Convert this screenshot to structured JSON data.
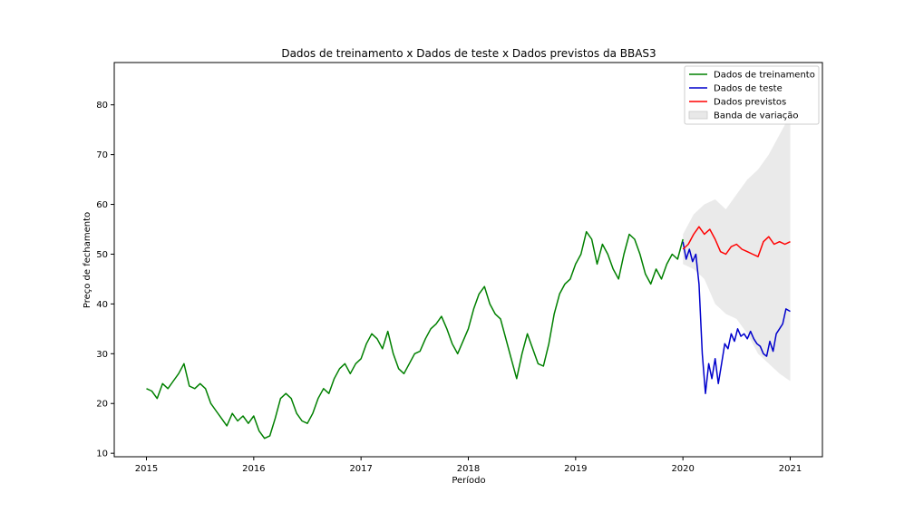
{
  "chart_data": {
    "type": "line",
    "title": "Dados de treinamento x Dados de teste x Dados previstos da BBAS3",
    "xlabel": "Período",
    "ylabel": "Preço de fechamento",
    "xlim": [
      2014.7,
      2021.3
    ],
    "ylim": [
      9.3,
      88.5
    ],
    "x_ticks": [
      2015,
      2016,
      2017,
      2018,
      2019,
      2020,
      2021
    ],
    "x_tick_labels": [
      "2015",
      "2016",
      "2017",
      "2018",
      "2019",
      "2020",
      "2021"
    ],
    "y_ticks": [
      10,
      20,
      30,
      40,
      50,
      60,
      70,
      80
    ],
    "y_tick_labels": [
      "10",
      "20",
      "30",
      "40",
      "50",
      "60",
      "70",
      "80"
    ],
    "grid": false,
    "legend_position": "top-right",
    "series": [
      {
        "name": "Dados de treinamento",
        "color": "#008000",
        "x": [
          2015.0,
          2015.05,
          2015.1,
          2015.15,
          2015.2,
          2015.25,
          2015.3,
          2015.35,
          2015.4,
          2015.45,
          2015.5,
          2015.55,
          2015.6,
          2015.65,
          2015.7,
          2015.75,
          2015.8,
          2015.85,
          2015.9,
          2015.95,
          2016.0,
          2016.05,
          2016.1,
          2016.15,
          2016.2,
          2016.25,
          2016.3,
          2016.35,
          2016.4,
          2016.45,
          2016.5,
          2016.55,
          2016.6,
          2016.65,
          2016.7,
          2016.75,
          2016.8,
          2016.85,
          2016.9,
          2016.95,
          2017.0,
          2017.05,
          2017.1,
          2017.15,
          2017.2,
          2017.25,
          2017.3,
          2017.35,
          2017.4,
          2017.45,
          2017.5,
          2017.55,
          2017.6,
          2017.65,
          2017.7,
          2017.75,
          2017.8,
          2017.85,
          2017.9,
          2017.95,
          2018.0,
          2018.05,
          2018.1,
          2018.15,
          2018.2,
          2018.25,
          2018.3,
          2018.35,
          2018.4,
          2018.45,
          2018.5,
          2018.55,
          2018.6,
          2018.65,
          2018.7,
          2018.75,
          2018.8,
          2018.85,
          2018.9,
          2018.95,
          2019.0,
          2019.05,
          2019.1,
          2019.15,
          2019.2,
          2019.25,
          2019.3,
          2019.35,
          2019.4,
          2019.45,
          2019.5,
          2019.55,
          2019.6,
          2019.65,
          2019.7,
          2019.75,
          2019.8,
          2019.85,
          2019.9,
          2019.95,
          2020.0
        ],
        "values": [
          23.0,
          22.5,
          21.0,
          24.0,
          23.0,
          24.5,
          26.0,
          28.0,
          23.5,
          23.0,
          24.0,
          23.0,
          20.0,
          18.5,
          17.0,
          15.5,
          18.0,
          16.5,
          17.5,
          16.0,
          17.5,
          14.5,
          13.0,
          13.5,
          17.0,
          21.0,
          22.0,
          21.0,
          18.0,
          16.5,
          16.0,
          18.0,
          21.0,
          23.0,
          22.0,
          25.0,
          27.0,
          28.0,
          26.0,
          28.0,
          29.0,
          32.0,
          34.0,
          33.0,
          31.0,
          34.5,
          30.0,
          27.0,
          26.0,
          28.0,
          30.0,
          30.5,
          33.0,
          35.0,
          36.0,
          37.5,
          35.0,
          32.0,
          30.0,
          32.5,
          35.0,
          39.0,
          42.0,
          43.5,
          40.0,
          38.0,
          37.0,
          33.0,
          29.0,
          25.0,
          30.0,
          34.0,
          31.0,
          28.0,
          27.5,
          32.0,
          38.0,
          42.0,
          44.0,
          45.0,
          48.0,
          50.0,
          54.5,
          53.0,
          48.0,
          52.0,
          50.0,
          47.0,
          45.0,
          50.0,
          54.0,
          53.0,
          50.0,
          46.0,
          44.0,
          47.0,
          45.0,
          48.0,
          50.0,
          49.0,
          53.0
        ]
      },
      {
        "name": "Dados de teste",
        "color": "#0000cc",
        "x": [
          2020.0,
          2020.03,
          2020.06,
          2020.09,
          2020.12,
          2020.15,
          2020.18,
          2020.21,
          2020.24,
          2020.27,
          2020.3,
          2020.33,
          2020.36,
          2020.39,
          2020.42,
          2020.45,
          2020.48,
          2020.51,
          2020.54,
          2020.57,
          2020.6,
          2020.63,
          2020.66,
          2020.69,
          2020.72,
          2020.75,
          2020.78,
          2020.81,
          2020.84,
          2020.87,
          2020.9,
          2020.93,
          2020.96,
          2021.0
        ],
        "values": [
          52.5,
          49.0,
          51.0,
          48.5,
          50.0,
          44.0,
          30.0,
          22.0,
          28.0,
          25.0,
          29.0,
          24.0,
          28.0,
          32.0,
          31.0,
          34.0,
          32.5,
          35.0,
          33.5,
          34.0,
          33.0,
          34.5,
          33.0,
          32.0,
          31.5,
          30.0,
          29.5,
          32.5,
          30.5,
          34.0,
          35.0,
          36.0,
          39.0,
          38.5
        ]
      },
      {
        "name": "Dados previstos",
        "color": "#ff0000",
        "x": [
          2020.0,
          2020.05,
          2020.1,
          2020.15,
          2020.2,
          2020.25,
          2020.3,
          2020.35,
          2020.4,
          2020.45,
          2020.5,
          2020.55,
          2020.6,
          2020.65,
          2020.7,
          2020.75,
          2020.8,
          2020.85,
          2020.9,
          2020.95,
          2021.0
        ],
        "values": [
          51.0,
          52.0,
          54.0,
          55.5,
          54.0,
          55.0,
          53.0,
          50.5,
          50.0,
          51.5,
          52.0,
          51.0,
          50.5,
          50.0,
          49.5,
          52.5,
          53.5,
          52.0,
          52.5,
          52.0,
          52.5
        ]
      }
    ],
    "band": {
      "name": "Banda de variação",
      "color": "#d9d9d9",
      "x": [
        2020.0,
        2020.1,
        2020.2,
        2020.3,
        2020.4,
        2020.5,
        2020.6,
        2020.7,
        2020.8,
        2020.9,
        2021.0
      ],
      "upper": [
        54.0,
        58.0,
        60.0,
        61.0,
        59.0,
        62.0,
        65.0,
        67.0,
        70.0,
        74.0,
        78.0
      ],
      "lower": [
        48.0,
        47.0,
        45.0,
        40.0,
        38.0,
        37.0,
        34.0,
        30.0,
        28.0,
        26.0,
        24.5
      ]
    }
  }
}
